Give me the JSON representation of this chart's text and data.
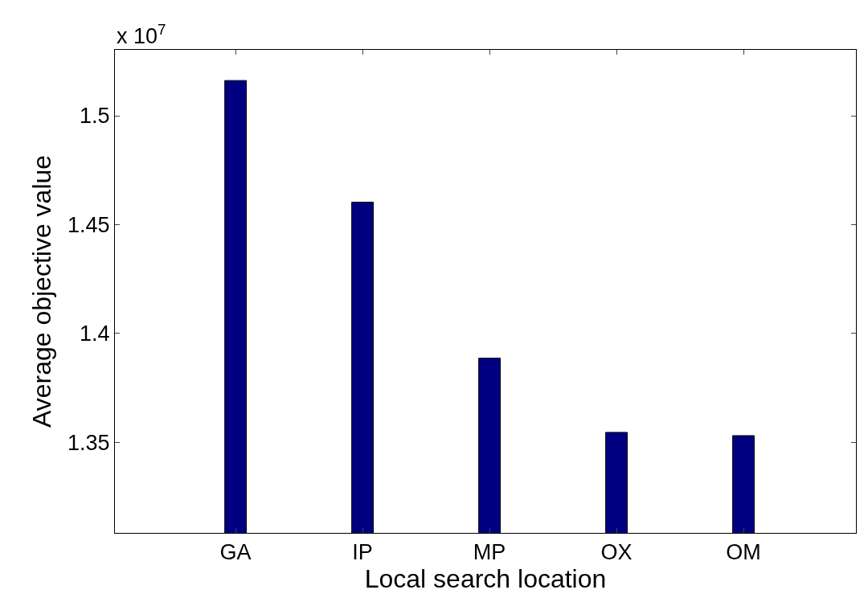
{
  "chart_data": {
    "type": "bar",
    "xlabel": "Local search location",
    "ylabel": "Average objective value",
    "annotations": [
      "x 10$^{7}$"
    ],
    "categories": [
      "GA",
      "IP",
      "MP",
      "OX",
      "OM"
    ],
    "values": [
      1.5162,
      1.4603,
      1.3886,
      1.3545,
      1.353
    ],
    "color": "#000080",
    "ylim": [
      1.3083,
      1.5303
    ],
    "yticks": [
      1.35,
      1.4,
      1.45,
      1.5
    ]
  }
}
